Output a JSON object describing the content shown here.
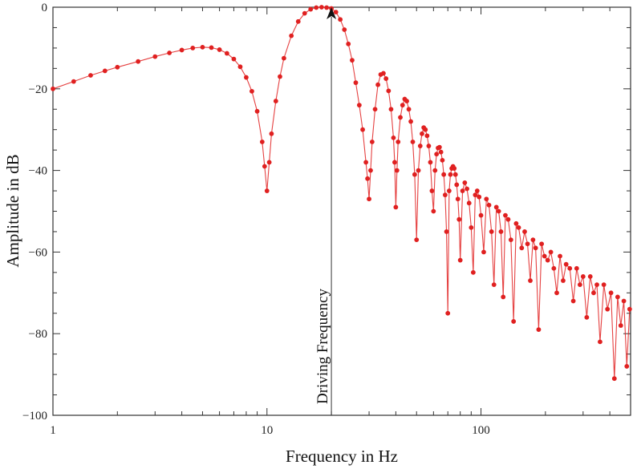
{
  "chart_data": {
    "type": "scatter",
    "title": "",
    "xlabel": "Frequency in Hz",
    "ylabel": "Amplitude in dB",
    "xscale": "log",
    "xlim": [
      1,
      500
    ],
    "ylim": [
      -100,
      0
    ],
    "grid": false,
    "legend": "none",
    "x_ticks": [
      {
        "value": 1,
        "label": "1"
      },
      {
        "value": 10,
        "label": "10"
      },
      {
        "value": 100,
        "label": "100"
      }
    ],
    "y_ticks": [
      {
        "value": 0,
        "label": "0"
      },
      {
        "value": -20,
        "label": "−20"
      },
      {
        "value": -40,
        "label": "−40"
      },
      {
        "value": -60,
        "label": "−60"
      },
      {
        "value": -80,
        "label": "−80"
      },
      {
        "value": -100,
        "label": "−100"
      }
    ],
    "annotation": {
      "text": "Driving Frequency",
      "x": 20,
      "y": 0
    },
    "colors": {
      "series": "#e02020",
      "axes": "#333333"
    },
    "series": [
      {
        "x": [
          1,
          1.25,
          1.5,
          1.75,
          2,
          2.5,
          3,
          3.5,
          4,
          4.5,
          5,
          5.5,
          6,
          6.5,
          7,
          7.5,
          8,
          8.5,
          9,
          9.5,
          9.75,
          10,
          10.25,
          10.5,
          11,
          11.5,
          12,
          13,
          14,
          15,
          16,
          17,
          18,
          19,
          20,
          21,
          22,
          23,
          24,
          25,
          26,
          27,
          28,
          29,
          29.5,
          30,
          30.5,
          31,
          32,
          33,
          34,
          35,
          36,
          37,
          38,
          39,
          39.5,
          40,
          40.5,
          41,
          42,
          43,
          44,
          45,
          46,
          47,
          48,
          49,
          50,
          51,
          52,
          53,
          54,
          55,
          56,
          57,
          58,
          59,
          60,
          61,
          62,
          63,
          64,
          65,
          66,
          67,
          68,
          69,
          70,
          71,
          72,
          73,
          74,
          75,
          76,
          77,
          78,
          79,
          80,
          82,
          84,
          86,
          88,
          90,
          92,
          94,
          96,
          98,
          100,
          103,
          106,
          109,
          112,
          115,
          118,
          121,
          124,
          127,
          130,
          134,
          138,
          142,
          146,
          150,
          155,
          160,
          165,
          170,
          175,
          180,
          186,
          192,
          198,
          205,
          212,
          219,
          226,
          234,
          242,
          250,
          260,
          270,
          280,
          290,
          300,
          312,
          324,
          336,
          348,
          360,
          375,
          390,
          405,
          420,
          435,
          450,
          465,
          480,
          495
        ],
        "y": [
          -20,
          -18.2,
          -16.7,
          -15.6,
          -14.7,
          -13.3,
          -12.1,
          -11.2,
          -10.5,
          -10,
          -9.8,
          -9.9,
          -10.4,
          -11.3,
          -12.7,
          -14.6,
          -17.2,
          -20.6,
          -25.5,
          -33,
          -39,
          -45,
          -38,
          -31,
          -23,
          -17,
          -12.5,
          -7,
          -3.5,
          -1.5,
          -0.5,
          -0.1,
          0,
          -0.1,
          -0.3,
          -1.2,
          -3,
          -5.5,
          -9,
          -13,
          -18.5,
          -24,
          -30,
          -38,
          -42,
          -47,
          -40,
          -33,
          -25,
          -19,
          -16.5,
          -16.2,
          -17.5,
          -20.5,
          -25,
          -32,
          -38,
          -49,
          -40,
          -33,
          -27,
          -24,
          -22.5,
          -23,
          -25,
          -28,
          -33,
          -41,
          -57,
          -40,
          -34,
          -31,
          -29.5,
          -30,
          -31.5,
          -34,
          -38,
          -45,
          -50,
          -40,
          -36,
          -34.5,
          -34.3,
          -35.5,
          -37.5,
          -41,
          -46,
          -55,
          -75,
          -45,
          -41,
          -39.5,
          -39,
          -39.5,
          -41,
          -43.5,
          -47,
          -52,
          -62,
          -45,
          -43,
          -44.5,
          -48,
          -54,
          -65,
          -46,
          -45,
          -46.5,
          -51,
          -60,
          -47,
          -48.5,
          -55,
          -68,
          -49,
          -50,
          -55,
          -71,
          -51,
          -52,
          -57,
          -77,
          -53,
          -54,
          -59,
          -55,
          -58,
          -67,
          -57,
          -59,
          -79,
          -58,
          -61,
          -62,
          -60,
          -64,
          -70,
          -61,
          -67,
          -63,
          -64,
          -72,
          -64,
          -68,
          -66,
          -76,
          -66,
          -70,
          -68,
          -82,
          -68,
          -74,
          -70,
          -91,
          -71,
          -78,
          -72,
          -88,
          -74
        ]
      }
    ]
  }
}
